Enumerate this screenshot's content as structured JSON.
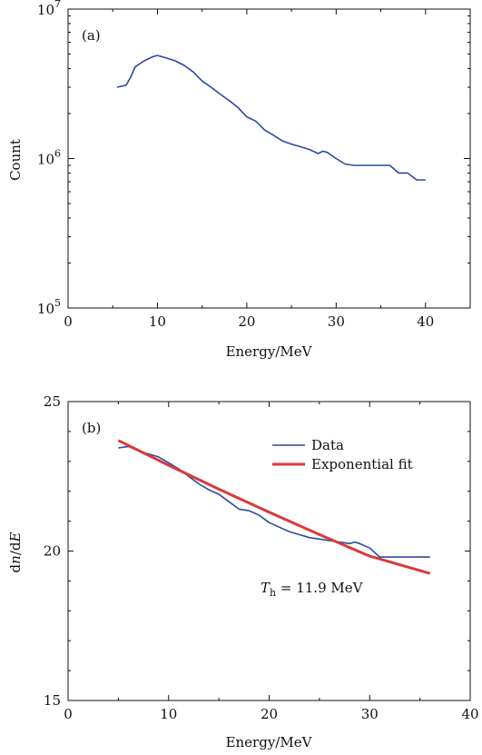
{
  "chart_data": [
    {
      "type": "line",
      "panel_tag": "(a)",
      "xlabel": "Energy/MeV",
      "ylabel": "Count",
      "xlim": [
        0,
        45
      ],
      "ylim": [
        100000,
        10000000
      ],
      "yscale": "log",
      "xticks": [
        "0",
        "10",
        "20",
        "30",
        "40"
      ],
      "xtick_values": [
        0,
        10,
        20,
        30,
        40
      ],
      "yticks": [
        {
          "base": "10",
          "exp": "5",
          "value": 100000
        },
        {
          "base": "10",
          "exp": "6",
          "value": 1000000
        },
        {
          "base": "10",
          "exp": "7",
          "value": 10000000
        }
      ],
      "series": [
        {
          "color": "#2b4aa0",
          "x": [
            5.5,
            6.5,
            7,
            7.5,
            8.5,
            9.5,
            10,
            11,
            12,
            13,
            14,
            15,
            16,
            17,
            18,
            19,
            20,
            21,
            22,
            23,
            24,
            25,
            26,
            27,
            28,
            28.5,
            29,
            29.5,
            30,
            31,
            32,
            33,
            34,
            35,
            36,
            37,
            38,
            39,
            40
          ],
          "values": [
            3000000,
            3100000,
            3500000,
            4100000,
            4500000,
            4800000,
            4900000,
            4700000,
            4500000,
            4200000,
            3800000,
            3300000,
            3000000,
            2700000,
            2450000,
            2200000,
            1900000,
            1780000,
            1550000,
            1430000,
            1310000,
            1250000,
            1200000,
            1150000,
            1080000,
            1120000,
            1100000,
            1050000,
            1000000,
            920000,
            900000,
            900000,
            900000,
            900000,
            900000,
            800000,
            800000,
            720000,
            720000
          ]
        }
      ]
    },
    {
      "type": "line",
      "panel_tag": "(b)",
      "xlabel": "Energy/MeV",
      "ylabel_parts": [
        "d",
        "n",
        "/d",
        "E"
      ],
      "xlim": [
        0,
        40
      ],
      "ylim": [
        15,
        25
      ],
      "xticks": [
        "0",
        "10",
        "20",
        "30",
        "40"
      ],
      "xtick_values": [
        0,
        10,
        20,
        30,
        40
      ],
      "yticks": [
        "15",
        "20",
        "25"
      ],
      "ytick_values": [
        15,
        20,
        25
      ],
      "annotation": {
        "T": "T",
        "sub": "h",
        "rest": " = 11.9 MeV"
      },
      "legend_position": "top-right",
      "series": [
        {
          "name": "Data",
          "color": "#2b4aa0",
          "x": [
            5,
            6,
            7,
            8,
            9,
            10,
            11,
            12,
            13,
            14,
            15,
            16,
            17,
            18,
            19,
            20,
            21,
            22,
            23,
            24,
            25,
            26,
            27,
            28,
            28.5,
            29,
            30,
            31,
            32,
            33,
            34,
            35,
            36
          ],
          "values": [
            23.45,
            23.5,
            23.35,
            23.25,
            23.15,
            22.95,
            22.75,
            22.5,
            22.25,
            22.05,
            21.9,
            21.65,
            21.4,
            21.35,
            21.2,
            20.95,
            20.8,
            20.65,
            20.55,
            20.45,
            20.4,
            20.35,
            20.3,
            20.25,
            20.3,
            20.25,
            20.1,
            19.8,
            19.8,
            19.8,
            19.8,
            19.8,
            19.8
          ]
        },
        {
          "name": "Exponential fit",
          "color": "#d93a3a",
          "x": [
            5,
            10,
            15,
            20,
            25,
            30,
            36
          ],
          "values": [
            23.7,
            22.87,
            22.07,
            21.3,
            20.55,
            19.83,
            19.25
          ]
        }
      ]
    }
  ]
}
